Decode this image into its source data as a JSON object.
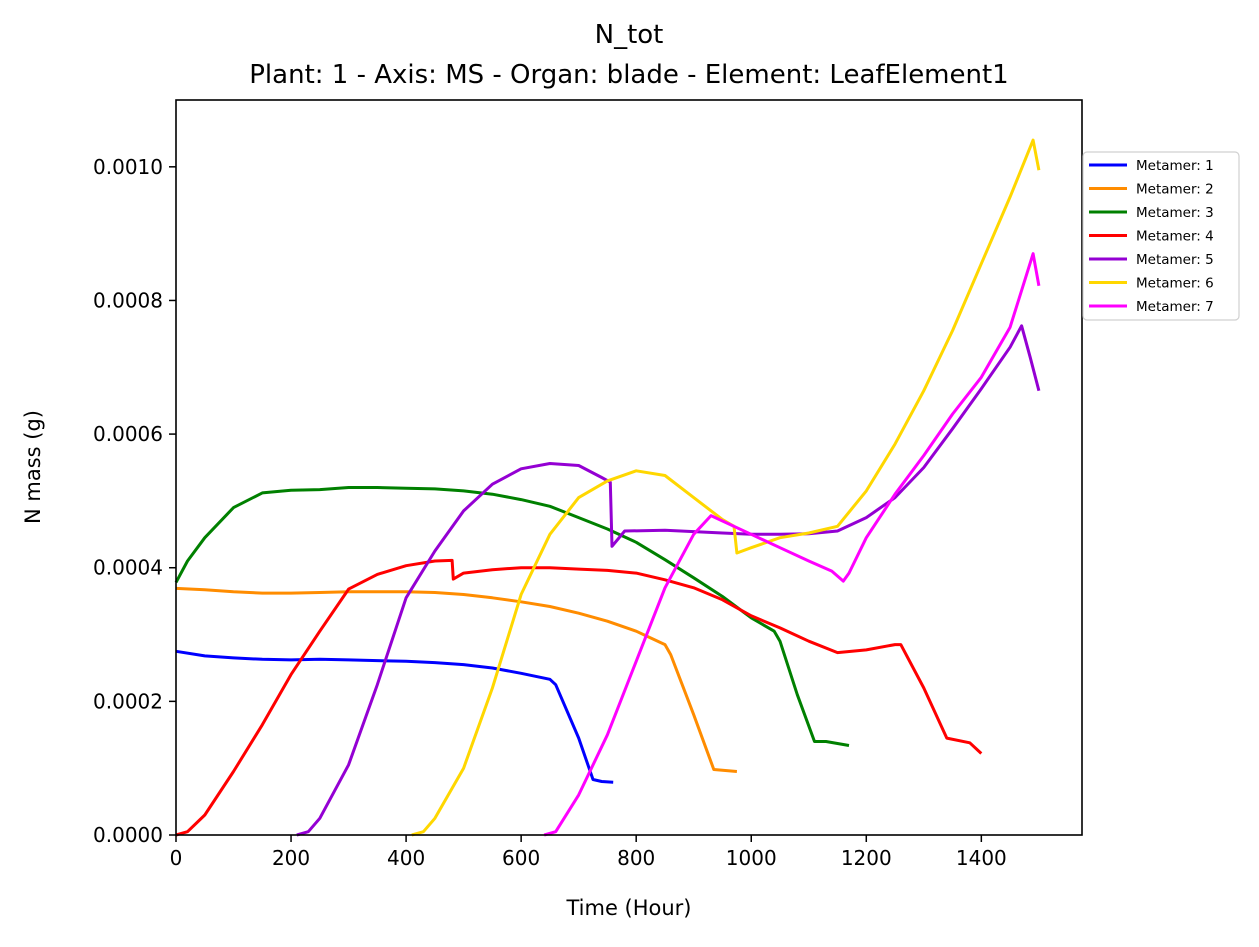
{
  "chart_data": {
    "type": "line",
    "title": "N_tot",
    "subtitle": "Plant: 1 - Axis: MS - Organ: blade - Element: LeafElement1",
    "xlabel": "Time (Hour)",
    "ylabel": "N mass (g)",
    "xlim": [
      0,
      1575
    ],
    "ylim": [
      0,
      0.0011
    ],
    "xticks": [
      0,
      200,
      400,
      600,
      800,
      1000,
      1200,
      1400
    ],
    "xtick_labels": [
      "0",
      "200",
      "400",
      "600",
      "800",
      "1000",
      "1200",
      "1400"
    ],
    "yticks": [
      0,
      0.0002,
      0.0004,
      0.0006,
      0.0008,
      0.001
    ],
    "ytick_labels": [
      "0.0000",
      "0.0002",
      "0.0004",
      "0.0006",
      "0.0008",
      "0.0010"
    ],
    "grid": false,
    "legend_position": "outside top-right",
    "series": [
      {
        "name": "Metamer: 1",
        "color": "#0000ff",
        "points": [
          [
            0,
            0.000275
          ],
          [
            50,
            0.000268
          ],
          [
            100,
            0.000265
          ],
          [
            150,
            0.000263
          ],
          [
            200,
            0.000262
          ],
          [
            250,
            0.000263
          ],
          [
            300,
            0.000262
          ],
          [
            350,
            0.000261
          ],
          [
            400,
            0.00026
          ],
          [
            450,
            0.000258
          ],
          [
            500,
            0.000255
          ],
          [
            550,
            0.00025
          ],
          [
            600,
            0.000242
          ],
          [
            650,
            0.000233
          ],
          [
            660,
            0.000225
          ],
          [
            700,
            0.000145
          ],
          [
            725,
            8.3e-05
          ],
          [
            740,
            8e-05
          ],
          [
            760,
            7.9e-05
          ]
        ]
      },
      {
        "name": "Metamer: 2",
        "color": "#ff8c00",
        "points": [
          [
            0,
            0.000369
          ],
          [
            50,
            0.000367
          ],
          [
            100,
            0.000364
          ],
          [
            150,
            0.000362
          ],
          [
            200,
            0.000362
          ],
          [
            250,
            0.000363
          ],
          [
            300,
            0.000364
          ],
          [
            350,
            0.000364
          ],
          [
            400,
            0.000364
          ],
          [
            450,
            0.000363
          ],
          [
            500,
            0.00036
          ],
          [
            550,
            0.000355
          ],
          [
            600,
            0.000349
          ],
          [
            650,
            0.000342
          ],
          [
            700,
            0.000332
          ],
          [
            750,
            0.00032
          ],
          [
            800,
            0.000305
          ],
          [
            850,
            0.000285
          ],
          [
            860,
            0.00027
          ],
          [
            900,
            0.00018
          ],
          [
            935,
            9.8e-05
          ],
          [
            975,
            9.5e-05
          ]
        ]
      },
      {
        "name": "Metamer: 3",
        "color": "#008000",
        "points": [
          [
            0,
            0.000378
          ],
          [
            20,
            0.00041
          ],
          [
            50,
            0.000445
          ],
          [
            100,
            0.00049
          ],
          [
            150,
            0.000512
          ],
          [
            200,
            0.000516
          ],
          [
            250,
            0.000517
          ],
          [
            300,
            0.00052
          ],
          [
            350,
            0.00052
          ],
          [
            400,
            0.000519
          ],
          [
            450,
            0.000518
          ],
          [
            500,
            0.000515
          ],
          [
            550,
            0.00051
          ],
          [
            600,
            0.000502
          ],
          [
            650,
            0.000492
          ],
          [
            700,
            0.000475
          ],
          [
            750,
            0.000458
          ],
          [
            800,
            0.000438
          ],
          [
            850,
            0.000412
          ],
          [
            900,
            0.000385
          ],
          [
            950,
            0.000357
          ],
          [
            1000,
            0.000325
          ],
          [
            1040,
            0.000305
          ],
          [
            1050,
            0.00029
          ],
          [
            1080,
            0.00021
          ],
          [
            1110,
            0.00014
          ],
          [
            1130,
            0.00014
          ],
          [
            1170,
            0.000134
          ]
        ]
      },
      {
        "name": "Metamer: 4",
        "color": "#ff0000",
        "points": [
          [
            0,
            0
          ],
          [
            20,
            5e-06
          ],
          [
            50,
            3e-05
          ],
          [
            100,
            9.5e-05
          ],
          [
            150,
            0.000165
          ],
          [
            200,
            0.00024
          ],
          [
            250,
            0.000305
          ],
          [
            300,
            0.000368
          ],
          [
            350,
            0.00039
          ],
          [
            400,
            0.000403
          ],
          [
            450,
            0.00041
          ],
          [
            480,
            0.000411
          ],
          [
            482,
            0.000383
          ],
          [
            500,
            0.000392
          ],
          [
            550,
            0.000397
          ],
          [
            600,
            0.0004
          ],
          [
            650,
            0.0004
          ],
          [
            700,
            0.000398
          ],
          [
            750,
            0.000396
          ],
          [
            800,
            0.000392
          ],
          [
            850,
            0.000382
          ],
          [
            900,
            0.00037
          ],
          [
            950,
            0.000352
          ],
          [
            1000,
            0.000328
          ],
          [
            1050,
            0.00031
          ],
          [
            1100,
            0.00029
          ],
          [
            1150,
            0.000273
          ],
          [
            1200,
            0.000277
          ],
          [
            1250,
            0.000285
          ],
          [
            1260,
            0.000285
          ],
          [
            1300,
            0.00022
          ],
          [
            1340,
            0.000145
          ],
          [
            1380,
            0.000138
          ],
          [
            1400,
            0.000122
          ]
        ]
      },
      {
        "name": "Metamer: 5",
        "color": "#9400d3",
        "points": [
          [
            210,
            0
          ],
          [
            230,
            5e-06
          ],
          [
            250,
            2.5e-05
          ],
          [
            300,
            0.000105
          ],
          [
            350,
            0.000225
          ],
          [
            400,
            0.000355
          ],
          [
            450,
            0.000425
          ],
          [
            500,
            0.000485
          ],
          [
            550,
            0.000525
          ],
          [
            600,
            0.000548
          ],
          [
            650,
            0.000556
          ],
          [
            700,
            0.000553
          ],
          [
            740,
            0.000535
          ],
          [
            755,
            0.000528
          ],
          [
            758,
            0.000432
          ],
          [
            780,
            0.000455
          ],
          [
            850,
            0.000456
          ],
          [
            900,
            0.000454
          ],
          [
            950,
            0.000452
          ],
          [
            1000,
            0.00045
          ],
          [
            1050,
            0.00045
          ],
          [
            1100,
            0.000451
          ],
          [
            1150,
            0.000455
          ],
          [
            1200,
            0.000475
          ],
          [
            1250,
            0.000505
          ],
          [
            1300,
            0.00055
          ],
          [
            1350,
            0.000608
          ],
          [
            1400,
            0.000668
          ],
          [
            1450,
            0.00073
          ],
          [
            1470,
            0.000762
          ],
          [
            1485,
            0.000715
          ],
          [
            1500,
            0.000665
          ]
        ]
      },
      {
        "name": "Metamer: 6",
        "color": "#ffd700",
        "points": [
          [
            410,
            0
          ],
          [
            430,
            5e-06
          ],
          [
            450,
            2.5e-05
          ],
          [
            500,
            0.0001
          ],
          [
            550,
            0.00022
          ],
          [
            600,
            0.00036
          ],
          [
            650,
            0.00045
          ],
          [
            700,
            0.000505
          ],
          [
            750,
            0.00053
          ],
          [
            800,
            0.000545
          ],
          [
            850,
            0.000538
          ],
          [
            900,
            0.000505
          ],
          [
            950,
            0.000472
          ],
          [
            970,
            0.000462
          ],
          [
            975,
            0.000422
          ],
          [
            1000,
            0.00043
          ],
          [
            1050,
            0.000445
          ],
          [
            1100,
            0.000452
          ],
          [
            1150,
            0.000462
          ],
          [
            1200,
            0.000515
          ],
          [
            1250,
            0.000585
          ],
          [
            1300,
            0.000665
          ],
          [
            1350,
            0.000755
          ],
          [
            1400,
            0.000855
          ],
          [
            1450,
            0.000955
          ],
          [
            1490,
            0.00104
          ],
          [
            1500,
            0.000995
          ]
        ]
      },
      {
        "name": "Metamer: 7",
        "color": "#ff00ff",
        "points": [
          [
            640,
            0
          ],
          [
            660,
            5e-06
          ],
          [
            700,
            6e-05
          ],
          [
            750,
            0.00015
          ],
          [
            800,
            0.00026
          ],
          [
            850,
            0.00037
          ],
          [
            900,
            0.00045
          ],
          [
            930,
            0.000478
          ],
          [
            950,
            0.00047
          ],
          [
            1000,
            0.00045
          ],
          [
            1050,
            0.00043
          ],
          [
            1100,
            0.00041
          ],
          [
            1140,
            0.000395
          ],
          [
            1160,
            0.00038
          ],
          [
            1170,
            0.000392
          ],
          [
            1200,
            0.000445
          ],
          [
            1250,
            0.00051
          ],
          [
            1300,
            0.000568
          ],
          [
            1350,
            0.00063
          ],
          [
            1400,
            0.000685
          ],
          [
            1450,
            0.00076
          ],
          [
            1490,
            0.00087
          ],
          [
            1500,
            0.000822
          ]
        ]
      }
    ]
  }
}
